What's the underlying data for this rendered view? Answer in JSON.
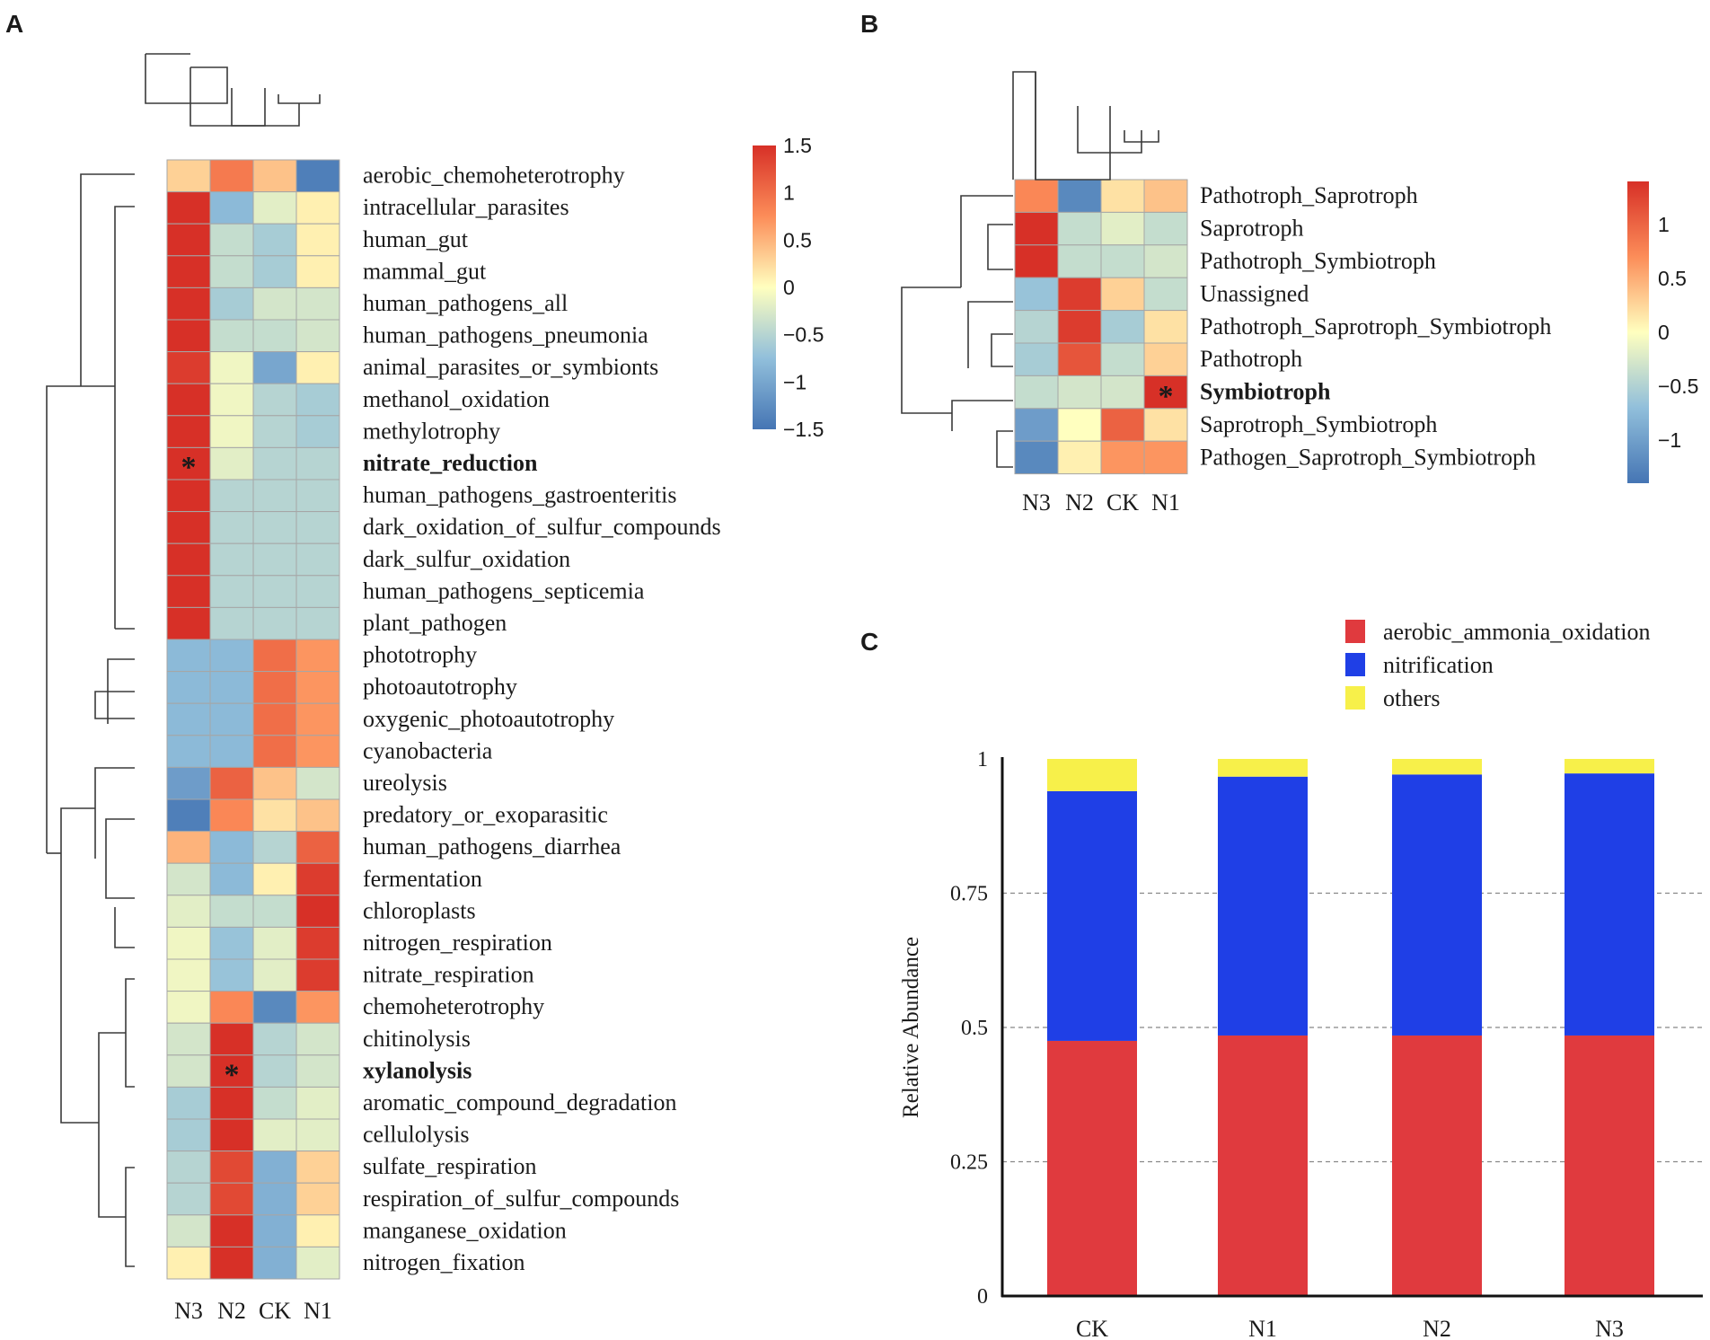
{
  "panels": {
    "a": "A",
    "b": "B",
    "c": "C"
  },
  "colors": {
    "low": "#4575b4",
    "mid_low": "#91bfdb",
    "mid": "#ffffbf",
    "mid_high": "#fc8d59",
    "high": "#d73027",
    "aerobic_ammonia_oxidation": "#e03a3e",
    "nitrification": "#1f3fe6",
    "others": "#f7f04a"
  },
  "chart_data": [
    {
      "type": "heatmap",
      "panel": "A",
      "columns": [
        "N3",
        "N2",
        "CK",
        "N1"
      ],
      "rows": [
        "aerobic_chemoheterotrophy",
        "intracellular_parasites",
        "human_gut",
        "mammal_gut",
        "human_pathogens_all",
        "human_pathogens_pneumonia",
        "animal_parasites_or_symbionts",
        "methanol_oxidation",
        "methylotrophy",
        "nitrate_reduction",
        "human_pathogens_gastroenteritis",
        "dark_oxidation_of_sulfur_compounds",
        "dark_sulfur_oxidation",
        "human_pathogens_septicemia",
        "plant_pathogen",
        "phototrophy",
        "photoautotrophy",
        "oxygenic_photoautotrophy",
        "cyanobacteria",
        "ureolysis",
        "predatory_or_exoparasitic",
        "human_pathogens_diarrhea",
        "fermentation",
        "chloroplasts",
        "nitrogen_respiration",
        "nitrate_respiration",
        "chemoheterotrophy",
        "chitinolysis",
        "xylanolysis",
        "aromatic_compound_degradation",
        "cellulolysis",
        "sulfate_respiration",
        "respiration_of_sulfur_compounds",
        "manganese_oxidation",
        "nitrogen_fixation"
      ],
      "bold_rows": [
        "nitrate_reduction",
        "xylanolysis"
      ],
      "values": [
        [
          0.3,
          0.9,
          0.4,
          -1.4
        ],
        [
          1.5,
          -0.8,
          -0.2,
          0.1
        ],
        [
          1.5,
          -0.4,
          -0.6,
          0.1
        ],
        [
          1.5,
          -0.4,
          -0.6,
          0.1
        ],
        [
          1.5,
          -0.6,
          -0.3,
          -0.3
        ],
        [
          1.5,
          -0.4,
          -0.4,
          -0.3
        ],
        [
          1.4,
          -0.1,
          -1.0,
          0.1
        ],
        [
          1.5,
          -0.1,
          -0.5,
          -0.6
        ],
        [
          1.5,
          -0.1,
          -0.5,
          -0.6
        ],
        [
          1.5,
          -0.2,
          -0.5,
          -0.5
        ],
        [
          1.5,
          -0.5,
          -0.5,
          -0.5
        ],
        [
          1.5,
          -0.5,
          -0.5,
          -0.5
        ],
        [
          1.5,
          -0.5,
          -0.5,
          -0.5
        ],
        [
          1.5,
          -0.5,
          -0.5,
          -0.5
        ],
        [
          1.5,
          -0.5,
          -0.5,
          -0.5
        ],
        [
          -0.8,
          -0.8,
          1.0,
          0.7
        ],
        [
          -0.8,
          -0.8,
          1.0,
          0.7
        ],
        [
          -0.8,
          -0.8,
          1.0,
          0.7
        ],
        [
          -0.8,
          -0.8,
          1.0,
          0.7
        ],
        [
          -1.1,
          1.1,
          0.4,
          -0.3
        ],
        [
          -1.4,
          0.8,
          0.2,
          0.4
        ],
        [
          0.5,
          -0.8,
          -0.5,
          1.1
        ],
        [
          -0.3,
          -0.8,
          0.1,
          1.4
        ],
        [
          -0.2,
          -0.4,
          -0.4,
          1.5
        ],
        [
          -0.1,
          -0.7,
          -0.2,
          1.4
        ],
        [
          -0.1,
          -0.7,
          -0.2,
          1.4
        ],
        [
          -0.1,
          0.8,
          -1.3,
          0.7
        ],
        [
          -0.3,
          1.5,
          -0.5,
          -0.3
        ],
        [
          -0.3,
          1.5,
          -0.5,
          -0.3
        ],
        [
          -0.6,
          1.5,
          -0.4,
          -0.2
        ],
        [
          -0.6,
          1.5,
          -0.2,
          -0.2
        ],
        [
          -0.5,
          1.3,
          -0.9,
          0.3
        ],
        [
          -0.5,
          1.3,
          -0.9,
          0.3
        ],
        [
          -0.3,
          1.5,
          -0.9,
          0.1
        ],
        [
          0.1,
          1.5,
          -0.9,
          -0.2
        ]
      ],
      "significant": [
        {
          "row": "nitrate_reduction",
          "column": "N3",
          "mark": "*"
        },
        {
          "row": "xylanolysis",
          "column": "N2",
          "mark": "*"
        }
      ],
      "colorbar": {
        "ticks": [
          "1.5",
          "1",
          "0.5",
          "0",
          "−0.5",
          "−1",
          "−1.5"
        ],
        "range": [
          -1.5,
          1.5
        ]
      }
    },
    {
      "type": "heatmap",
      "panel": "B",
      "columns": [
        "N3",
        "N2",
        "CK",
        "N1"
      ],
      "rows": [
        "Pathotroph_Saprotroph",
        "Saprotroph",
        "Pathotroph_Symbiotroph",
        "Unassigned",
        "Pathotroph_Saprotroph_Symbiotroph",
        "Pathotroph",
        "Symbiotroph",
        "Saprotroph_Symbiotroph",
        "Pathogen_Saprotroph_Symbiotroph"
      ],
      "bold_rows": [
        "Symbiotroph"
      ],
      "values": [
        [
          0.8,
          -1.3,
          0.2,
          0.4
        ],
        [
          1.5,
          -0.4,
          -0.2,
          -0.4
        ],
        [
          1.5,
          -0.4,
          -0.4,
          -0.3
        ],
        [
          -0.7,
          1.4,
          0.3,
          -0.4
        ],
        [
          -0.5,
          1.4,
          -0.6,
          0.2
        ],
        [
          -0.6,
          1.2,
          -0.4,
          0.3
        ],
        [
          -0.4,
          -0.3,
          -0.3,
          1.5
        ],
        [
          -1.1,
          0.0,
          1.1,
          0.2
        ],
        [
          -1.3,
          0.1,
          0.7,
          0.7
        ]
      ],
      "significant": [
        {
          "row": "Symbiotroph",
          "column": "N1",
          "mark": "*"
        }
      ],
      "colorbar": {
        "ticks": [
          "1",
          "0.5",
          "0",
          "−0.5",
          "−1"
        ],
        "range": [
          -1.4,
          1.4
        ]
      }
    },
    {
      "type": "bar",
      "stacked": true,
      "panel": "C",
      "categories": [
        "CK",
        "N1",
        "N2",
        "N3"
      ],
      "series": [
        {
          "name": "aerobic_ammonia_oxidation",
          "values": [
            0.475,
            0.485,
            0.485,
            0.485
          ]
        },
        {
          "name": "nitrification",
          "values": [
            0.465,
            0.482,
            0.486,
            0.488
          ]
        },
        {
          "name": "others",
          "values": [
            0.06,
            0.033,
            0.029,
            0.027
          ]
        }
      ],
      "ylabel": "Relative Abundance",
      "yticks": [
        "0",
        "0.25",
        "0.5",
        "0.75",
        "1"
      ],
      "ylim": [
        0,
        1
      ],
      "grid": "dashed horizontal",
      "legend": "top"
    }
  ]
}
